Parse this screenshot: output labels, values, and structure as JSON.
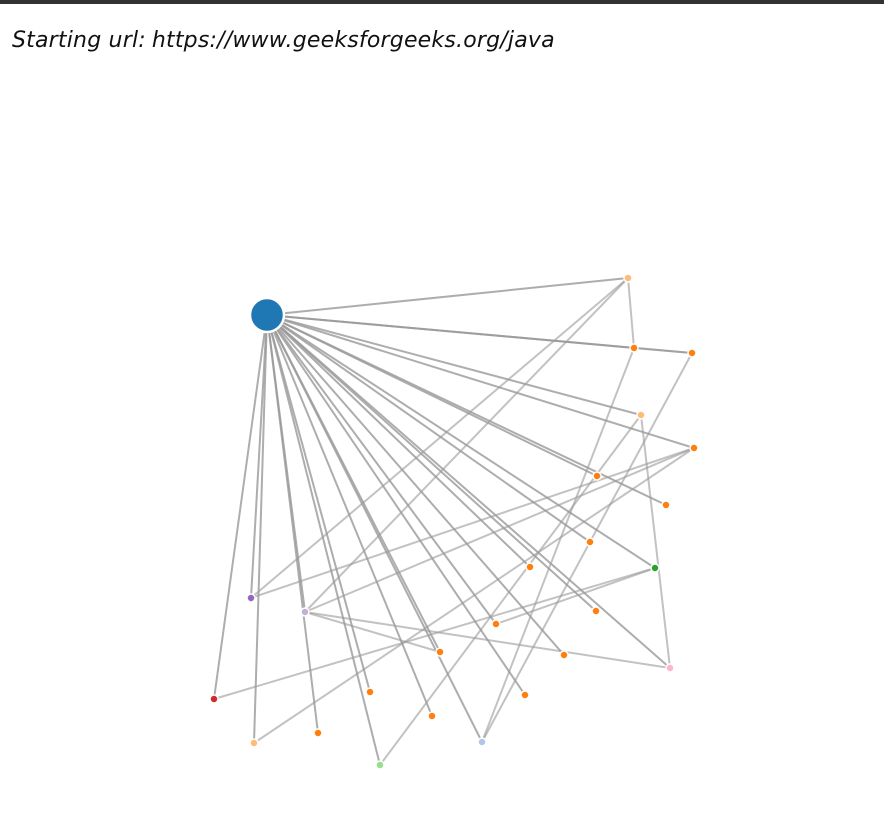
{
  "header": {
    "label": "Starting url:",
    "url": "https://www.geeksforgeeks.org/java"
  },
  "graph": {
    "link_color": "#999999",
    "nodes": [
      {
        "id": "root",
        "color": "#1f77b4"
      },
      {
        "id": "n1",
        "color": "#ffbb78"
      },
      {
        "id": "n2",
        "color": "#ff7f0e"
      },
      {
        "id": "n3",
        "color": "#ff7f0e"
      },
      {
        "id": "n4",
        "color": "#ffbb78"
      },
      {
        "id": "n5",
        "color": "#ff7f0e"
      },
      {
        "id": "n6",
        "color": "#ff7f0e"
      },
      {
        "id": "n7",
        "color": "#ff7f0e"
      },
      {
        "id": "n8",
        "color": "#ff7f0e"
      },
      {
        "id": "n9",
        "color": "#ff7f0e"
      },
      {
        "id": "n10",
        "color": "#2ca02c"
      },
      {
        "id": "n11",
        "color": "#9467bd"
      },
      {
        "id": "n12",
        "color": "#c5b0d5"
      },
      {
        "id": "n13",
        "color": "#ff7f0e"
      },
      {
        "id": "n14",
        "color": "#ff7f0e"
      },
      {
        "id": "n15",
        "color": "#ff7f0e"
      },
      {
        "id": "n16",
        "color": "#ff7f0e"
      },
      {
        "id": "n17",
        "color": "#f7b6d2"
      },
      {
        "id": "n18",
        "color": "#d62728"
      },
      {
        "id": "n19",
        "color": "#ff7f0e"
      },
      {
        "id": "n20",
        "color": "#ff7f0e"
      },
      {
        "id": "n21",
        "color": "#ff7f0e"
      },
      {
        "id": "n22",
        "color": "#ffbb78"
      },
      {
        "id": "n23",
        "color": "#ff7f0e"
      },
      {
        "id": "n24",
        "color": "#aec7e8"
      },
      {
        "id": "n25",
        "color": "#98df8a"
      }
    ],
    "links": [
      [
        "root",
        "n1"
      ],
      [
        "root",
        "n2"
      ],
      [
        "root",
        "n3"
      ],
      [
        "root",
        "n4"
      ],
      [
        "root",
        "n5"
      ],
      [
        "root",
        "n6"
      ],
      [
        "root",
        "n7"
      ],
      [
        "root",
        "n8"
      ],
      [
        "root",
        "n9"
      ],
      [
        "root",
        "n10"
      ],
      [
        "root",
        "n11"
      ],
      [
        "root",
        "n12"
      ],
      [
        "root",
        "n13"
      ],
      [
        "root",
        "n14"
      ],
      [
        "root",
        "n15"
      ],
      [
        "root",
        "n16"
      ],
      [
        "root",
        "n17"
      ],
      [
        "root",
        "n18"
      ],
      [
        "root",
        "n19"
      ],
      [
        "root",
        "n20"
      ],
      [
        "root",
        "n21"
      ],
      [
        "root",
        "n22"
      ],
      [
        "root",
        "n23"
      ],
      [
        "root",
        "n24"
      ],
      [
        "root",
        "n25"
      ],
      [
        "n1",
        "n11"
      ],
      [
        "n1",
        "n12"
      ],
      [
        "n1",
        "n2"
      ],
      [
        "n2",
        "n24"
      ],
      [
        "n2",
        "n3"
      ],
      [
        "n3",
        "n24"
      ],
      [
        "n4",
        "n25"
      ],
      [
        "n4",
        "n17"
      ],
      [
        "n5",
        "n12"
      ],
      [
        "n5",
        "n22"
      ],
      [
        "n10",
        "n18"
      ],
      [
        "n10",
        "n14"
      ],
      [
        "n12",
        "n16"
      ],
      [
        "n12",
        "n17"
      ],
      [
        "n11",
        "n5"
      ]
    ]
  }
}
